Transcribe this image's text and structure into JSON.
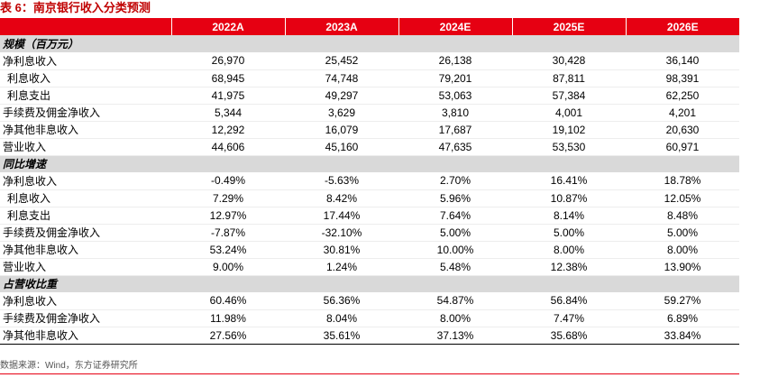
{
  "title": "表 6：南京银行收入分类预测",
  "columns": [
    "",
    "2022A",
    "2023A",
    "2024E",
    "2025E",
    "2026E"
  ],
  "sections": [
    {
      "name": "规模（百万元）",
      "rows": [
        {
          "label": "净利息收入",
          "indent": false,
          "values": [
            "26,970",
            "25,452",
            "26,138",
            "30,428",
            "36,140"
          ]
        },
        {
          "label": "利息收入",
          "indent": true,
          "values": [
            "68,945",
            "74,748",
            "79,201",
            "87,811",
            "98,391"
          ]
        },
        {
          "label": "利息支出",
          "indent": true,
          "values": [
            "41,975",
            "49,297",
            "53,063",
            "57,384",
            "62,250"
          ]
        },
        {
          "label": "手续费及佣金净收入",
          "indent": false,
          "values": [
            "5,344",
            "3,629",
            "3,810",
            "4,001",
            "4,201"
          ]
        },
        {
          "label": "净其他非息收入",
          "indent": false,
          "values": [
            "12,292",
            "16,079",
            "17,687",
            "19,102",
            "20,630"
          ]
        },
        {
          "label": "营业收入",
          "indent": false,
          "values": [
            "44,606",
            "45,160",
            "47,635",
            "53,530",
            "60,971"
          ]
        }
      ]
    },
    {
      "name": "同比增速",
      "rows": [
        {
          "label": "净利息收入",
          "indent": false,
          "values": [
            "-0.49%",
            "-5.63%",
            "2.70%",
            "16.41%",
            "18.78%"
          ]
        },
        {
          "label": "利息收入",
          "indent": true,
          "values": [
            "7.29%",
            "8.42%",
            "5.96%",
            "10.87%",
            "12.05%"
          ]
        },
        {
          "label": "利息支出",
          "indent": true,
          "values": [
            "12.97%",
            "17.44%",
            "7.64%",
            "8.14%",
            "8.48%"
          ]
        },
        {
          "label": "手续费及佣金净收入",
          "indent": false,
          "values": [
            "-7.87%",
            "-32.10%",
            "5.00%",
            "5.00%",
            "5.00%"
          ]
        },
        {
          "label": "净其他非息收入",
          "indent": false,
          "values": [
            "53.24%",
            "30.81%",
            "10.00%",
            "8.00%",
            "8.00%"
          ]
        },
        {
          "label": "营业收入",
          "indent": false,
          "values": [
            "9.00%",
            "1.24%",
            "5.48%",
            "12.38%",
            "13.90%"
          ]
        }
      ]
    },
    {
      "name": "占营收比重",
      "rows": [
        {
          "label": "净利息收入",
          "indent": false,
          "values": [
            "60.46%",
            "56.36%",
            "54.87%",
            "56.84%",
            "59.27%"
          ]
        },
        {
          "label": "手续费及佣金净收入",
          "indent": false,
          "values": [
            "11.98%",
            "8.04%",
            "8.00%",
            "7.47%",
            "6.89%"
          ]
        },
        {
          "label": "净其他非息收入",
          "indent": false,
          "values": [
            "27.56%",
            "35.61%",
            "37.13%",
            "35.68%",
            "33.84%"
          ]
        }
      ]
    }
  ],
  "source": "数据来源：Wind，东方证券研究所",
  "colors": {
    "header_bg": "#e60012",
    "title": "#c00000",
    "section_bg": "#d9d9d9"
  }
}
